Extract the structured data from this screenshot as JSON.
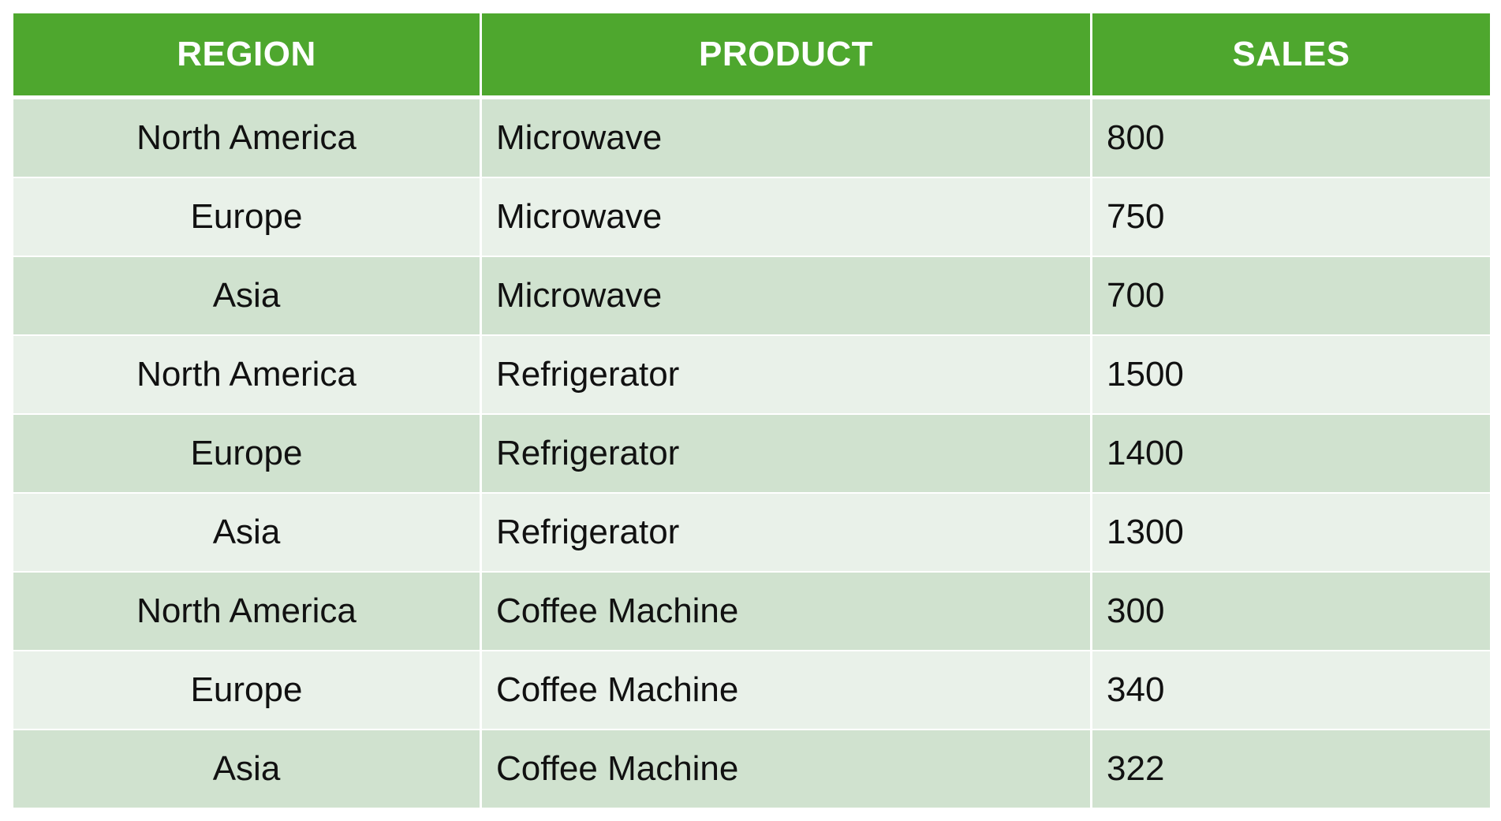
{
  "chart_data": {
    "type": "table",
    "columns": [
      "REGION",
      "PRODUCT",
      "SALES"
    ],
    "rows": [
      {
        "region": "North America",
        "product": "Microwave",
        "sales": "800"
      },
      {
        "region": "Europe",
        "product": "Microwave",
        "sales": "750"
      },
      {
        "region": "Asia",
        "product": "Microwave",
        "sales": "700"
      },
      {
        "region": "North America",
        "product": "Refrigerator",
        "sales": "1500"
      },
      {
        "region": "Europe",
        "product": "Refrigerator",
        "sales": "1400"
      },
      {
        "region": "Asia",
        "product": "Refrigerator",
        "sales": "1300"
      },
      {
        "region": "North America",
        "product": "Coffee Machine",
        "sales": "300"
      },
      {
        "region": "Europe",
        "product": "Coffee Machine",
        "sales": "340"
      },
      {
        "region": "Asia",
        "product": "Coffee Machine",
        "sales": "322"
      }
    ]
  },
  "colors": {
    "header_bg": "#4ea72e",
    "header_text": "#ffffff",
    "row_band_dark": "#d0e2cf",
    "row_band_light": "#e9f1e9",
    "cell_text": "#111111"
  }
}
